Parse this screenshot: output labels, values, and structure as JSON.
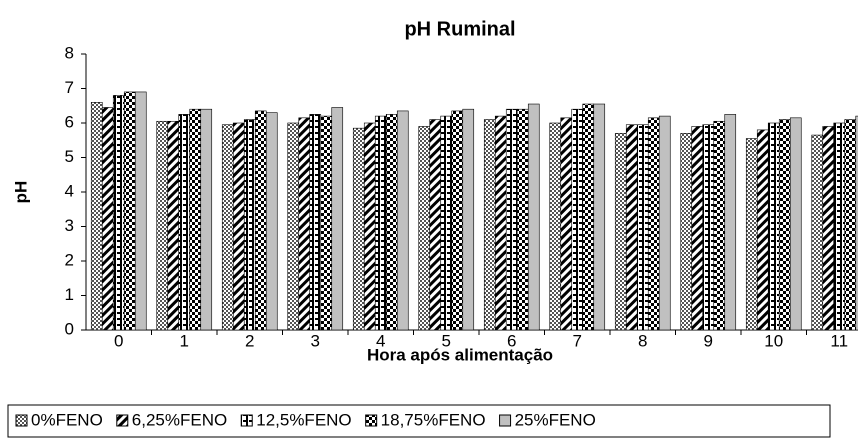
{
  "chart_data": {
    "type": "bar",
    "title": "pH Ruminal",
    "x_label": "Hora após alimentação",
    "y_label": "pH",
    "categories": [
      "0",
      "1",
      "2",
      "3",
      "4",
      "5",
      "6",
      "7",
      "8",
      "9",
      "10",
      "11"
    ],
    "series": [
      {
        "name": "0%FENO",
        "color": "#808080",
        "pattern": "dots",
        "values": [
          6.6,
          6.05,
          5.95,
          6.0,
          5.85,
          5.9,
          6.1,
          6.0,
          5.7,
          5.7,
          5.55,
          5.65
        ]
      },
      {
        "name": "6,25%FENO",
        "color": "#000000",
        "pattern": "diagonal",
        "values": [
          6.45,
          6.05,
          6.0,
          6.15,
          6.0,
          6.1,
          6.2,
          6.15,
          5.95,
          5.9,
          5.8,
          5.9
        ]
      },
      {
        "name": "12,5%FENO",
        "color": "#000000",
        "pattern": "vstripe",
        "values": [
          6.8,
          6.25,
          6.1,
          6.25,
          6.2,
          6.2,
          6.4,
          6.4,
          5.95,
          5.95,
          6.0,
          6.0
        ]
      },
      {
        "name": "18,75%FENO",
        "color": "#000000",
        "pattern": "checker",
        "values": [
          6.9,
          6.4,
          6.35,
          6.2,
          6.25,
          6.35,
          6.4,
          6.55,
          6.15,
          6.05,
          6.1,
          6.1
        ]
      },
      {
        "name": "25%FENO",
        "color": "#c0c0c0",
        "pattern": "solid",
        "values": [
          6.9,
          6.4,
          6.3,
          6.45,
          6.35,
          6.4,
          6.55,
          6.55,
          6.2,
          6.25,
          6.15,
          6.2
        ]
      }
    ],
    "ylim": [
      0,
      8
    ],
    "yticks": [
      0,
      1,
      2,
      3,
      4,
      5,
      6,
      7,
      8
    ],
    "legend": "bottom"
  }
}
